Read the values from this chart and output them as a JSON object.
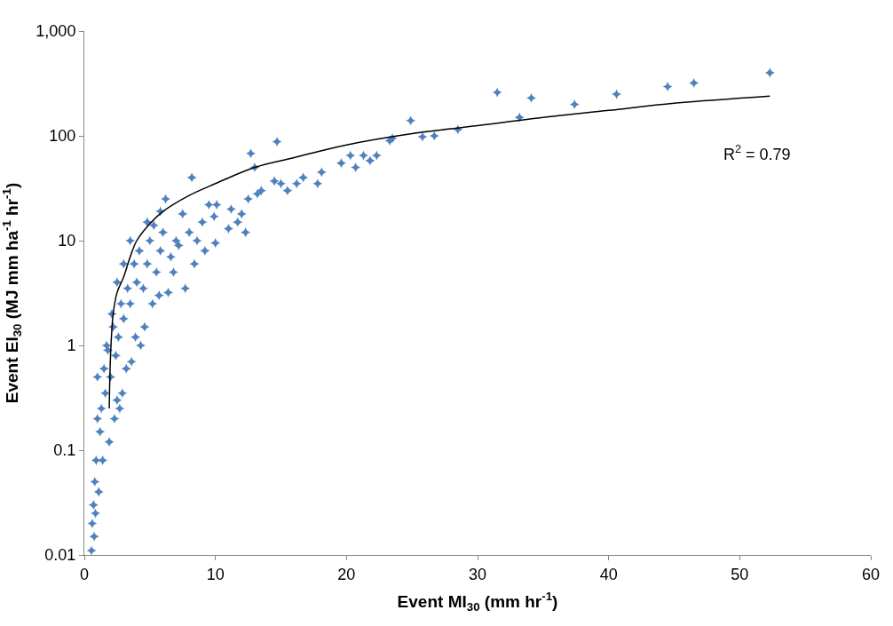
{
  "chart_data": {
    "type": "scatter",
    "xlabel": "Event MI$_{30}$ (mm hr$^{-1}$)",
    "ylabel": "Event EI$_{30}$ (MJ mm ha$^{-1}$ hr$^{-1}$)",
    "log": "y",
    "xlim": [
      0,
      60
    ],
    "xticks": [
      0,
      10,
      20,
      30,
      40,
      50,
      60
    ],
    "ylim": [
      0.01,
      1000
    ],
    "yticks": [
      0.01,
      0.1,
      1,
      10,
      100,
      {
        "value": 1000,
        "label": "1,000"
      }
    ],
    "series": [
      {
        "marker": "star",
        "color": "#4f81bd",
        "x": [
          52.3,
          46.5,
          44.5,
          40.6,
          37.4,
          34.1,
          33.2,
          31.5,
          28.5,
          26.7,
          25.8,
          24.9,
          23.5,
          23.3,
          22.3,
          21.8,
          21.3,
          20.7,
          20.3,
          19.6,
          18.1,
          17.8,
          16.7,
          16.2,
          15.5,
          15.0,
          14.7,
          14.5,
          13.5,
          13.0,
          12.7,
          12.5,
          12.0,
          11.7,
          11.2,
          11.0,
          10.1,
          9.9,
          9.5,
          9.0,
          8.6,
          8.2,
          8.0,
          7.5,
          7.2,
          7.0,
          6.6,
          6.2,
          6.0,
          5.8,
          5.5,
          5.3,
          5.0,
          4.8,
          4.5,
          4.2,
          4.0,
          3.8,
          3.5,
          3.3,
          3.0,
          2.8,
          2.6,
          2.4,
          2.2,
          2.0,
          1.8,
          1.6,
          1.5,
          1.3,
          1.2,
          1.0,
          0.9,
          0.8,
          0.7,
          0.6,
          0.55,
          7.7,
          6.8,
          6.4,
          5.7,
          5.2,
          4.6,
          4.3,
          3.9,
          3.6,
          3.2,
          2.9,
          2.7,
          2.5,
          2.3,
          9.2,
          8.4,
          10.0,
          12.3,
          13.2,
          4.8,
          5.8,
          1.9,
          1.4,
          1.1,
          0.85,
          0.75,
          1.0,
          1.7,
          2.1,
          2.5,
          3.0,
          3.5
        ],
        "values": [
          400,
          320,
          295,
          250,
          200,
          230,
          150,
          260,
          115,
          100,
          98,
          140,
          95,
          90,
          65,
          58,
          65,
          50,
          65,
          55,
          45,
          35,
          40,
          35,
          30,
          35,
          88,
          37,
          30,
          50,
          68,
          25,
          18,
          15,
          20,
          13,
          22,
          17,
          22,
          15,
          10,
          40,
          12,
          18,
          9,
          10,
          7,
          25,
          12,
          8,
          5,
          14,
          10,
          6,
          3.5,
          8,
          4,
          6,
          2.5,
          3.5,
          1.8,
          2.5,
          1.2,
          0.8,
          1.5,
          0.5,
          0.9,
          0.35,
          0.6,
          0.25,
          0.15,
          0.2,
          0.08,
          0.05,
          0.03,
          0.02,
          0.011,
          3.5,
          5,
          3.2,
          3,
          2.5,
          1.5,
          1,
          1.2,
          0.7,
          0.6,
          0.35,
          0.25,
          0.3,
          0.2,
          8,
          6,
          9.5,
          12,
          28,
          15,
          19,
          0.12,
          0.08,
          0.04,
          0.025,
          0.015,
          0.5,
          1.0,
          2.0,
          4,
          6,
          10
        ]
      },
      {
        "type": "line",
        "marker": "none",
        "color": "#000000",
        "x": [
          1.9,
          2.0,
          2.2,
          2.5,
          3,
          3.5,
          4,
          5,
          6,
          8,
          10,
          13,
          16,
          20,
          25,
          30,
          35,
          40,
          45,
          52.3
        ],
        "values": [
          0.25,
          0.8,
          2,
          3.2,
          4.5,
          7,
          10,
          14.5,
          19,
          27,
          35,
          50,
          62,
          82,
          105,
          125,
          150,
          175,
          205,
          240
        ]
      }
    ],
    "annotations": [
      "R$^{2}$ = 0.79"
    ]
  }
}
